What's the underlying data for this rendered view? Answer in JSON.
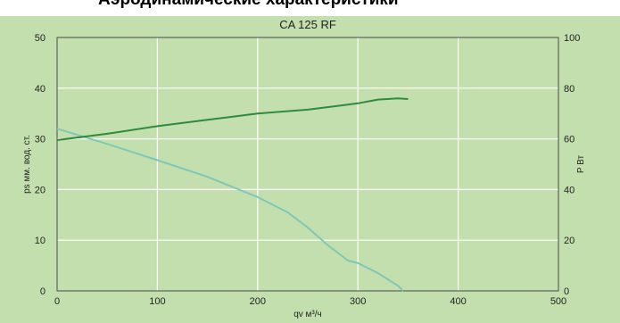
{
  "page_heading": "Аэродинамические характеристики",
  "chart_data": {
    "type": "line",
    "title": "CA 125 RF",
    "xlabel": "qv   м³/ч",
    "ylabel": "ps мм. вод. ст.",
    "y2label": "P Вт",
    "xlim": [
      0,
      500
    ],
    "ylim": [
      0,
      50
    ],
    "y2lim": [
      0,
      100
    ],
    "x_ticks": [
      "0",
      "100",
      "200",
      "300",
      "400",
      "500"
    ],
    "y_ticks": [
      "0",
      "10",
      "20",
      "30",
      "40",
      "50"
    ],
    "y2_ticks": [
      "0",
      "20",
      "40",
      "60",
      "80",
      "100"
    ],
    "grid": true,
    "colors": {
      "background": "#c3dfae",
      "grid": "#ffffff",
      "pressure": "#7ec8b8",
      "power": "#2e8b3e"
    },
    "series": [
      {
        "axis": "left",
        "x": [
          0,
          25,
          50,
          100,
          150,
          200,
          230,
          250,
          270,
          290,
          300,
          320,
          340,
          345
        ],
        "y": [
          32,
          30.5,
          29,
          25.8,
          22.5,
          18.5,
          15.5,
          12.5,
          9,
          6,
          5.5,
          3.5,
          1,
          0
        ]
      },
      {
        "axis": "right",
        "x": [
          0,
          50,
          100,
          150,
          200,
          250,
          300,
          320,
          340,
          350
        ],
        "y": [
          59.5,
          62,
          65,
          67.5,
          70,
          71.5,
          74,
          75.5,
          76,
          75.7
        ]
      }
    ]
  }
}
